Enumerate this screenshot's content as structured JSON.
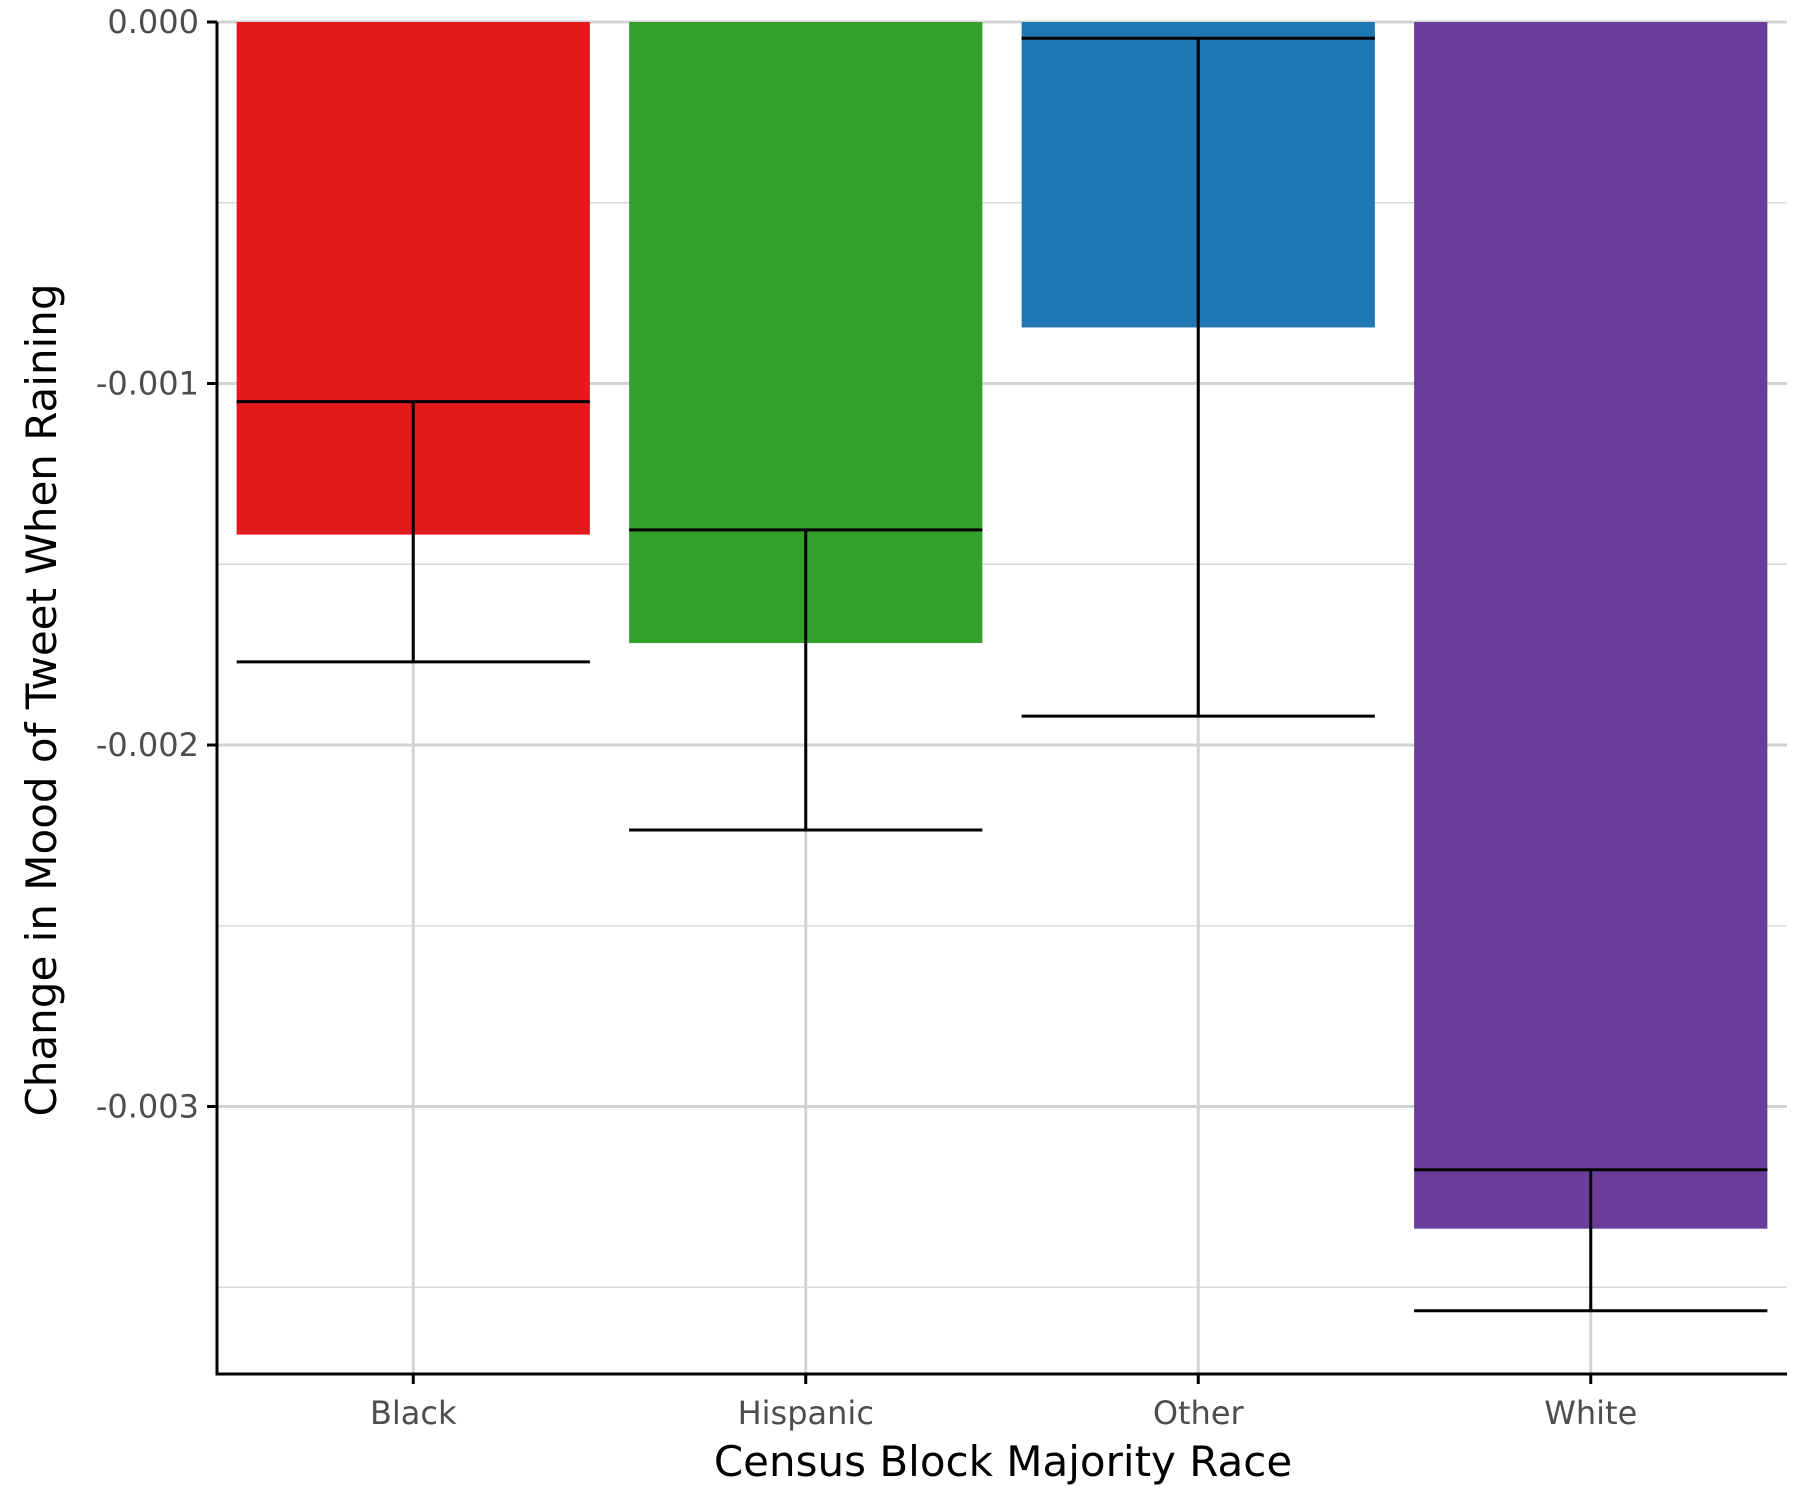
{
  "chart_data": {
    "type": "bar",
    "title": "",
    "xlabel": "Census Block Majority Race",
    "ylabel": "Change in Mood of Tweet When Raining",
    "categories": [
      "Black",
      "Hispanic",
      "Other",
      "White"
    ],
    "values": [
      -0.001418,
      -0.001718,
      -0.000845,
      -0.003338
    ],
    "error_bars": [
      {
        "high": -0.00105,
        "low": -0.00177
      },
      {
        "high": -0.001405,
        "low": -0.002235
      },
      {
        "high": -4.5e-05,
        "low": -0.00192
      },
      {
        "high": -0.003175,
        "low": -0.003565
      }
    ],
    "colors": [
      "#e31a1c",
      "#33a02c",
      "#1f78b4",
      "#6a3d9a"
    ],
    "ylim": [
      -0.00374,
      0.0
    ],
    "yticks": [
      0.0,
      -0.001,
      -0.002,
      -0.003
    ],
    "ytick_labels": [
      "0.000",
      "-0.001",
      "-0.002",
      "-0.003"
    ],
    "grid": true
  }
}
